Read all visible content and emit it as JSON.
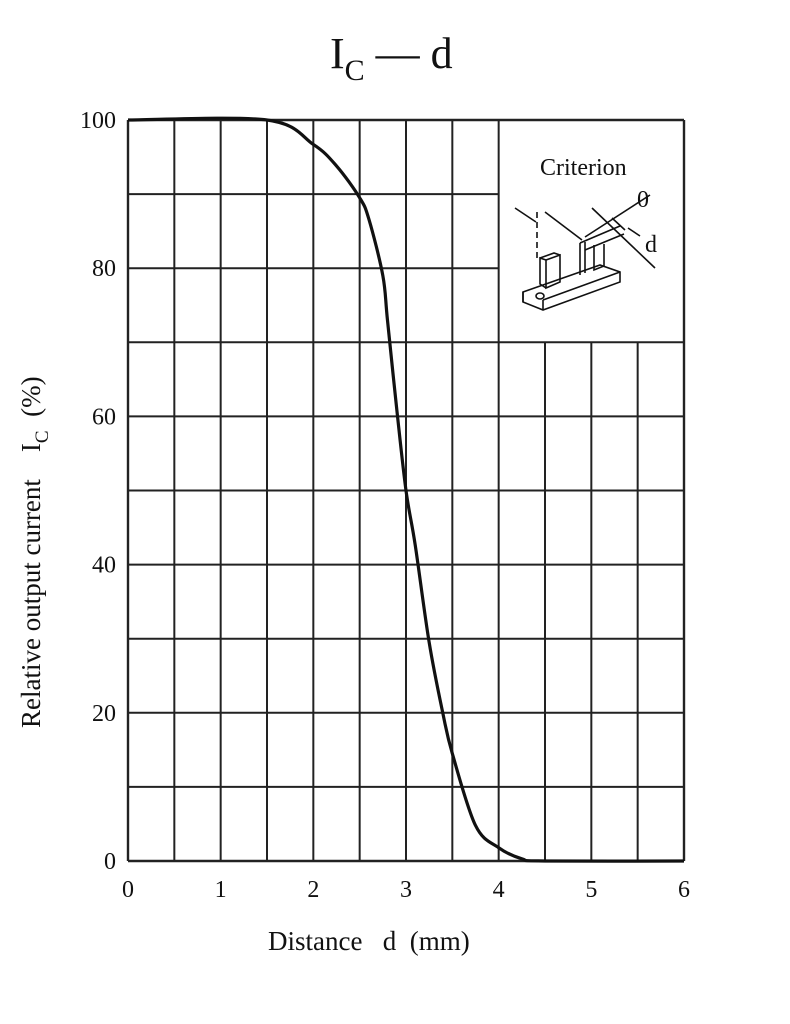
{
  "chart_data": {
    "type": "line",
    "title": "I",
    "title_sub": "C",
    "title_rest": " — d",
    "xlabel": "Distance   d  (mm)",
    "ylabel": "Relative output current    I",
    "ylabel_sub": "C",
    "ylabel_unit": "  (%)",
    "xlim": [
      0,
      6
    ],
    "ylim": [
      0,
      100
    ],
    "x_ticks": [
      0,
      1,
      2,
      3,
      4,
      5,
      6
    ],
    "y_ticks": [
      0,
      20,
      40,
      60,
      80,
      100
    ],
    "x_tick_labels": [
      "0",
      "1",
      "2",
      "3",
      "4",
      "5",
      "6"
    ],
    "y_tick_labels": [
      "0",
      "20",
      "40",
      "60",
      "80",
      "100"
    ],
    "grid": true,
    "grid_x_step": 0.5,
    "grid_y_step": 10,
    "series": [
      {
        "name": "Ic",
        "x": [
          0,
          1.5,
          2.0,
          2.25,
          2.5,
          2.6,
          2.75,
          2.8,
          2.9,
          3.0,
          3.1,
          3.25,
          3.4,
          3.5,
          3.75,
          4.0,
          4.25,
          4.5,
          6.0
        ],
        "y": [
          100,
          100,
          96.7,
          93.8,
          89.5,
          86.6,
          79,
          73,
          61,
          50,
          42.6,
          29.5,
          19.8,
          14.5,
          4.8,
          1.8,
          0.3,
          0,
          0
        ]
      }
    ],
    "inset": {
      "label": "Criterion",
      "zero_label": "0",
      "d_label": "d"
    }
  }
}
